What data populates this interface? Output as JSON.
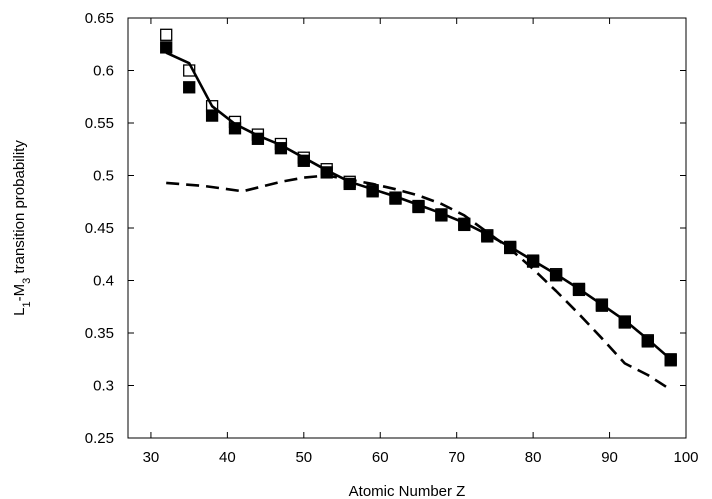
{
  "chart_data": {
    "type": "line",
    "title": "",
    "xlabel": "Atomic Number Z",
    "ylabel": {
      "parts": [
        {
          "text": "L",
          "sub": false
        },
        {
          "text": "1",
          "sub": true
        },
        {
          "text": "-M",
          "sub": false
        },
        {
          "text": "3",
          "sub": true
        },
        {
          "text": " transition probability",
          "sub": false
        }
      ]
    },
    "xlim": [
      27,
      100
    ],
    "ylim": [
      0.25,
      0.65
    ],
    "xticks": [
      "30",
      "40",
      "50",
      "60",
      "70",
      "80",
      "90",
      "100"
    ],
    "yticks": [
      "0.25",
      "0.3",
      "0.35",
      "0.4",
      "0.45",
      "0.5",
      "0.55",
      "0.6",
      "0.65"
    ],
    "grid": false,
    "series": [
      {
        "style": "solid-line",
        "color": "#000000",
        "x": [
          32,
          35,
          38,
          41,
          44,
          47,
          50,
          53,
          56,
          59,
          62,
          65,
          68,
          71,
          74,
          77,
          80,
          83,
          86,
          89,
          92,
          95,
          98
        ],
        "y": [
          0.617,
          0.607,
          0.566,
          0.549,
          0.538,
          0.529,
          0.517,
          0.505,
          0.494,
          0.487,
          0.48,
          0.472,
          0.464,
          0.455,
          0.444,
          0.432,
          0.419,
          0.406,
          0.392,
          0.377,
          0.362,
          0.344,
          0.325
        ]
      },
      {
        "style": "dashed-line",
        "color": "#000000",
        "x": [
          32,
          37,
          42,
          47,
          50,
          53,
          56,
          59,
          62,
          65,
          68,
          71,
          74,
          77,
          80,
          83,
          86,
          89,
          92,
          95,
          98
        ],
        "y": [
          0.493,
          0.49,
          0.485,
          0.494,
          0.498,
          0.5,
          0.496,
          0.492,
          0.487,
          0.481,
          0.473,
          0.462,
          0.446,
          0.43,
          0.411,
          0.39,
          0.368,
          0.345,
          0.321,
          0.31,
          0.296
        ]
      },
      {
        "style": "open-squares",
        "color": "#000000",
        "x": [
          32,
          35,
          38,
          41,
          44,
          47,
          50,
          53,
          56,
          59,
          62,
          65,
          68,
          71,
          74,
          77,
          80,
          83,
          86,
          89,
          92,
          95,
          98
        ],
        "y": [
          0.634,
          0.6,
          0.566,
          0.551,
          0.539,
          0.53,
          0.517,
          0.506,
          0.494,
          0.486,
          0.479,
          0.471,
          0.463,
          0.454,
          0.443,
          0.432,
          0.419,
          0.406,
          0.392,
          0.377,
          0.361,
          0.343,
          0.324
        ]
      },
      {
        "style": "filled-squares",
        "color": "#000000",
        "x": [
          32,
          35,
          38,
          41,
          44,
          47,
          50,
          53,
          56,
          59,
          62,
          65,
          68,
          71,
          74,
          77,
          80,
          83,
          86,
          89,
          92,
          95,
          98
        ],
        "y": [
          0.622,
          0.584,
          0.557,
          0.545,
          0.535,
          0.526,
          0.514,
          0.503,
          0.492,
          0.485,
          0.478,
          0.47,
          0.462,
          0.453,
          0.442,
          0.431,
          0.418,
          0.405,
          0.391,
          0.376,
          0.36,
          0.342,
          0.325
        ]
      }
    ]
  }
}
